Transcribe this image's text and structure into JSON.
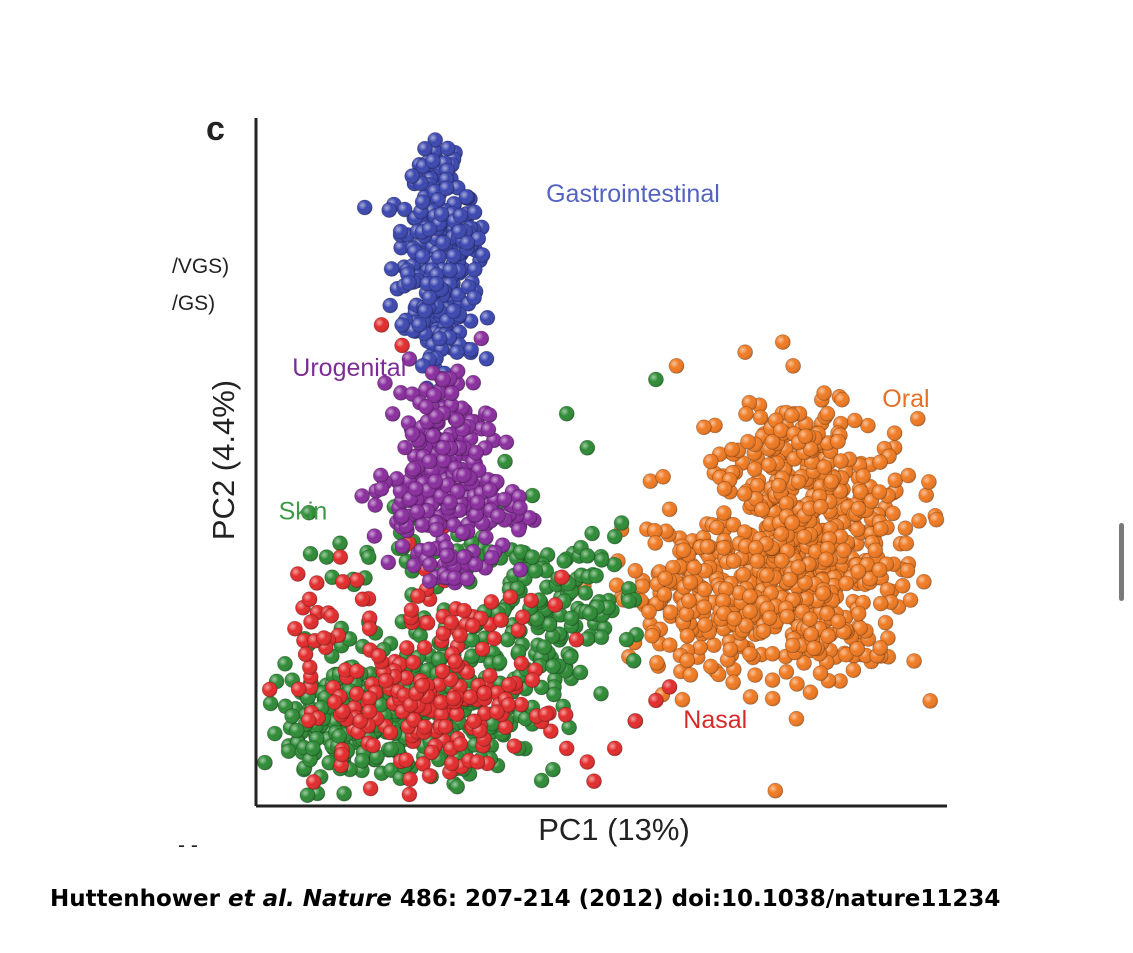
{
  "panel": {
    "letter": "c",
    "clipped_legend": [
      "/VGS)",
      "/GS)"
    ],
    "clipped_bottom": "‐ ‐"
  },
  "chart_data": {
    "type": "scatter",
    "title": "",
    "xlabel": "PC1 (13%)",
    "ylabel": "PC2 (4.4%)",
    "xlim": [
      0,
      100
    ],
    "ylim": [
      0,
      100
    ],
    "grid": false,
    "legend": "in-plot cluster labels",
    "series": [
      {
        "name": "Gastrointestinal",
        "color": "#3b47b0",
        "label_color": "#5563c1",
        "label_at": [
          42,
          88
        ],
        "points": [
          [
            25.5,
            94
          ],
          [
            27.5,
            90
          ],
          [
            24.0,
            88
          ],
          [
            29.5,
            86
          ],
          [
            25.0,
            84
          ],
          [
            27.0,
            82
          ],
          [
            24.0,
            80
          ],
          [
            28.0,
            78
          ],
          [
            26.0,
            76
          ],
          [
            25.0,
            74
          ],
          [
            28.5,
            72
          ],
          [
            23.5,
            70
          ],
          [
            26.5,
            68
          ],
          [
            29.0,
            66
          ],
          [
            24.0,
            64
          ],
          [
            21.0,
            70
          ],
          [
            31.5,
            74
          ],
          [
            30.5,
            82
          ]
        ],
        "density": [
          {
            "center": [
              26.5,
              92
            ],
            "spread": [
              1.8,
              2.5
            ],
            "count": 40
          },
          {
            "center": [
              26,
              82
            ],
            "spread": [
              3.0,
              4.5
            ],
            "count": 150
          },
          {
            "center": [
              26.5,
              72
            ],
            "spread": [
              2.5,
              3.5
            ],
            "count": 70
          },
          {
            "center": [
              30.5,
              83
            ],
            "spread": [
              1.2,
              1.5
            ],
            "count": 15
          },
          {
            "center": [
              27,
              66
            ],
            "spread": [
              2.5,
              2.5
            ],
            "count": 15
          }
        ]
      },
      {
        "name": "Urogenital",
        "color": "#8a2d9e",
        "label_color": "#7b2d95",
        "label_at": [
          5,
          62.5
        ],
        "points": [
          [
            27.0,
            62
          ],
          [
            24.5,
            58
          ],
          [
            29.0,
            56
          ],
          [
            22.5,
            54
          ],
          [
            27.0,
            52
          ],
          [
            25.0,
            50
          ],
          [
            30.0,
            48
          ],
          [
            23.0,
            46
          ],
          [
            28.0,
            44
          ],
          [
            21.0,
            42
          ],
          [
            26.0,
            40
          ],
          [
            32.0,
            44
          ],
          [
            35.0,
            42
          ],
          [
            38.0,
            40
          ],
          [
            18.0,
            46
          ],
          [
            30.0,
            36
          ]
        ],
        "density": [
          {
            "center": [
              27,
              53
            ],
            "spread": [
              3.5,
              5.5
            ],
            "count": 130
          },
          {
            "center": [
              25,
              44
            ],
            "spread": [
              4.0,
              3.0
            ],
            "count": 70
          },
          {
            "center": [
              34,
              43
            ],
            "spread": [
              3.0,
              2.5
            ],
            "count": 45
          },
          {
            "center": [
              27,
              35
            ],
            "spread": [
              4.0,
              2.0
            ],
            "count": 30
          }
        ]
      },
      {
        "name": "Skin",
        "color": "#2d8b35",
        "label_color": "#3f9a48",
        "label_at": [
          3,
          41.5
        ],
        "points": [
          [
            48.0,
            52
          ],
          [
            58.0,
            62
          ],
          [
            45.0,
            57
          ],
          [
            53.0,
            41
          ],
          [
            52.0,
            39
          ],
          [
            40.0,
            36
          ],
          [
            36.0,
            50
          ],
          [
            40.0,
            45
          ],
          [
            10.0,
            36
          ],
          [
            14.0,
            32
          ],
          [
            33.0,
            28
          ],
          [
            48.0,
            24
          ],
          [
            40.0,
            14
          ],
          [
            38.0,
            8
          ],
          [
            30.0,
            5
          ],
          [
            5.0,
            18
          ],
          [
            8.0,
            8
          ],
          [
            50.0,
            16
          ],
          [
            55.0,
            12
          ],
          [
            43.0,
            20
          ]
        ],
        "density": [
          {
            "center": [
              15,
              12
            ],
            "spread": [
              7.0,
              5.0
            ],
            "count": 260
          },
          {
            "center": [
              28,
              14
            ],
            "spread": [
              8.0,
              5.0
            ],
            "count": 140
          },
          {
            "center": [
              38,
              26
            ],
            "spread": [
              6.0,
              5.0
            ],
            "count": 90
          },
          {
            "center": [
              27,
              37
            ],
            "spread": [
              8.0,
              3.0
            ],
            "count": 50
          },
          {
            "center": [
              47,
              31
            ],
            "spread": [
              4.0,
              4.0
            ],
            "count": 40
          }
        ]
      },
      {
        "name": "Nasal",
        "color": "#e32b2b",
        "label_color": "#d62a2a",
        "label_at": [
          62,
          11
        ],
        "points": [
          [
            18.0,
            70
          ],
          [
            21.0,
            67
          ],
          [
            23.5,
            51
          ],
          [
            22.0,
            38
          ],
          [
            42.0,
            13
          ],
          [
            45.0,
            8
          ],
          [
            48.0,
            6
          ],
          [
            52.0,
            8
          ],
          [
            55.0,
            12
          ],
          [
            58.0,
            15
          ],
          [
            60.0,
            17
          ],
          [
            25.0,
            4
          ],
          [
            32.0,
            6
          ],
          [
            12.0,
            36
          ],
          [
            40.0,
            18
          ]
        ],
        "density": [
          {
            "center": [
              20,
              14
            ],
            "spread": [
              7.0,
              5.0
            ],
            "count": 90
          },
          {
            "center": [
              32,
              14
            ],
            "spread": [
              6.0,
              5.0
            ],
            "count": 70
          },
          {
            "center": [
              30,
              28
            ],
            "spread": [
              6.0,
              5.0
            ],
            "count": 40
          },
          {
            "center": [
              10,
              28
            ],
            "spread": [
              4.0,
              3.0
            ],
            "count": 20
          }
        ]
      },
      {
        "name": "Oral",
        "color": "#f07a22",
        "label_color": "#e2722a",
        "label_at": [
          91,
          58
        ],
        "points": [
          [
            61.0,
            64
          ],
          [
            71.0,
            66
          ],
          [
            78.0,
            64
          ],
          [
            83.0,
            57
          ],
          [
            94.5,
            38
          ],
          [
            60.0,
            43
          ],
          [
            53.0,
            40
          ],
          [
            55.0,
            34
          ],
          [
            57.0,
            28
          ],
          [
            66.0,
            20
          ],
          [
            75.0,
            18
          ],
          [
            82.0,
            19
          ],
          [
            65.0,
            55
          ],
          [
            66.0,
            50
          ],
          [
            68.0,
            46
          ],
          [
            87.0,
            56
          ]
        ],
        "density": [
          {
            "center": [
              80,
              38
            ],
            "spread": [
              8.0,
              9.0
            ],
            "count": 520
          },
          {
            "center": [
              72,
              31
            ],
            "spread": [
              6.0,
              6.0
            ],
            "count": 120
          },
          {
            "center": [
              61,
              30
            ],
            "spread": [
              4.5,
              4.5
            ],
            "count": 80
          },
          {
            "center": [
              78,
              53
            ],
            "spread": [
              4.0,
              2.5
            ],
            "count": 40
          },
          {
            "center": [
              80,
              24
            ],
            "spread": [
              6.0,
              3.0
            ],
            "count": 50
          }
        ]
      }
    ]
  },
  "citation": {
    "authors": "Huttenhower",
    "etal": "et al.",
    "journal": "Nature",
    "details": "486: 207-214 (2012) doi:10.1038/nature11234"
  }
}
